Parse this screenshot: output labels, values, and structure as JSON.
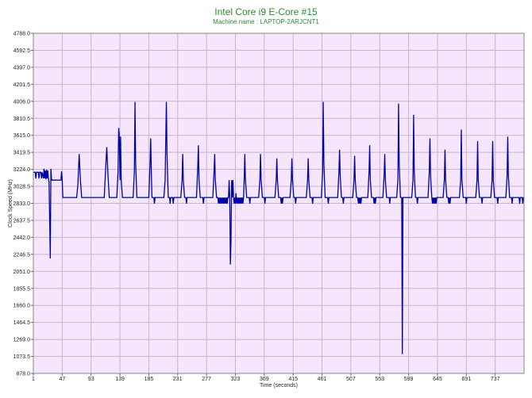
{
  "chart_data": {
    "type": "line",
    "title": "Intel Core i9 E-Core #15",
    "subtitle": "Machine name : LAPTOP-2ARJCNT1",
    "xlabel": "Time (seconds)",
    "ylabel": "Clock Speed (MHz)",
    "xlim": [
      1,
      783
    ],
    "ylim": [
      878.0,
      4788.0
    ],
    "xticks": [
      1,
      47,
      93,
      139,
      185,
      231,
      277,
      323,
      369,
      415,
      461,
      507,
      553,
      599,
      645,
      691,
      737
    ],
    "yticks": [
      "878.0",
      "1073.5",
      "1269.0",
      "1464.5",
      "1660.0",
      "1855.5",
      "2051.0",
      "2246.5",
      "2442.0",
      "2637.5",
      "2833.0",
      "3028.5",
      "3224.0",
      "3419.5",
      "3615.0",
      "3810.5",
      "4006.0",
      "4201.5",
      "4397.0",
      "4592.5",
      "4788.0"
    ],
    "grid": true,
    "background_color": "#f5e6fb",
    "grid_color": "#c9b3d3",
    "line_color": "#0000a8",
    "series": [
      {
        "values": [
          [
            1,
            3190
          ],
          [
            4,
            3190
          ],
          [
            5,
            3120
          ],
          [
            6,
            3190
          ],
          [
            9,
            3190
          ],
          [
            10,
            3120
          ],
          [
            11,
            3190
          ],
          [
            13,
            3190
          ],
          [
            14,
            3120
          ],
          [
            15,
            3190
          ],
          [
            17,
            3120
          ],
          [
            18,
            3230
          ],
          [
            19,
            3120
          ],
          [
            20,
            3210
          ],
          [
            21,
            3110
          ],
          [
            22,
            3220
          ],
          [
            23,
            3120
          ],
          [
            24,
            3210
          ],
          [
            25,
            3120
          ],
          [
            26,
            3080
          ],
          [
            27,
            2650
          ],
          [
            28,
            2200
          ],
          [
            29,
            3230
          ],
          [
            30,
            3100
          ],
          [
            34,
            3100
          ],
          [
            45,
            3100
          ],
          [
            46,
            3200
          ],
          [
            47,
            3100
          ],
          [
            48,
            2900
          ],
          [
            70,
            2900
          ],
          [
            72,
            3050
          ],
          [
            74,
            3400
          ],
          [
            76,
            3100
          ],
          [
            78,
            2900
          ],
          [
            114,
            2900
          ],
          [
            116,
            3200
          ],
          [
            118,
            3480
          ],
          [
            120,
            3150
          ],
          [
            122,
            2900
          ],
          [
            134,
            2900
          ],
          [
            136,
            3200
          ],
          [
            137,
            3700
          ],
          [
            138,
            3600
          ],
          [
            139,
            3100
          ],
          [
            140,
            3600
          ],
          [
            141,
            3100
          ],
          [
            143,
            2900
          ],
          [
            160,
            2900
          ],
          [
            162,
            3200
          ],
          [
            163,
            4000
          ],
          [
            164,
            3300
          ],
          [
            166,
            2900
          ],
          [
            185,
            2900
          ],
          [
            187,
            3300
          ],
          [
            188,
            3580
          ],
          [
            189,
            3200
          ],
          [
            190,
            2900
          ],
          [
            193,
            2900
          ],
          [
            194,
            2830
          ],
          [
            195,
            2900
          ],
          [
            209,
            2900
          ],
          [
            211,
            3100
          ],
          [
            213,
            4000
          ],
          [
            214,
            3400
          ],
          [
            216,
            2900
          ],
          [
            218,
            2900
          ],
          [
            219,
            2830
          ],
          [
            220,
            2900
          ],
          [
            223,
            2900
          ],
          [
            224,
            2830
          ],
          [
            225,
            2900
          ],
          [
            236,
            2900
          ],
          [
            238,
            3100
          ],
          [
            239,
            3400
          ],
          [
            240,
            3100
          ],
          [
            242,
            2900
          ],
          [
            244,
            2900
          ],
          [
            245,
            2830
          ],
          [
            246,
            2900
          ],
          [
            261,
            2900
          ],
          [
            263,
            3250
          ],
          [
            264,
            3500
          ],
          [
            265,
            3100
          ],
          [
            267,
            2900
          ],
          [
            271,
            2900
          ],
          [
            272,
            2830
          ],
          [
            273,
            2900
          ],
          [
            287,
            2900
          ],
          [
            289,
            3200
          ],
          [
            290,
            3400
          ],
          [
            291,
            3100
          ],
          [
            293,
            2900
          ],
          [
            295,
            2900
          ],
          [
            296,
            2830
          ],
          [
            297,
            2900
          ],
          [
            298,
            2830
          ],
          [
            299,
            2900
          ],
          [
            300,
            2830
          ],
          [
            301,
            2900
          ],
          [
            302,
            2830
          ],
          [
            303,
            2900
          ],
          [
            304,
            2830
          ],
          [
            305,
            2900
          ],
          [
            306,
            2830
          ],
          [
            307,
            2900
          ],
          [
            308,
            2830
          ],
          [
            309,
            2900
          ],
          [
            310,
            2830
          ],
          [
            311,
            2900
          ],
          [
            312,
            2900
          ],
          [
            313,
            3100
          ],
          [
            314,
            2900
          ],
          [
            315,
            2130
          ],
          [
            316,
            2400
          ],
          [
            317,
            3100
          ],
          [
            318,
            2900
          ],
          [
            319,
            3100
          ],
          [
            320,
            2900
          ],
          [
            321,
            2830
          ],
          [
            322,
            2900
          ],
          [
            323,
            2830
          ],
          [
            324,
            2950
          ],
          [
            325,
            2830
          ],
          [
            326,
            2900
          ],
          [
            327,
            2830
          ],
          [
            328,
            2900
          ],
          [
            329,
            2830
          ],
          [
            330,
            2900
          ],
          [
            331,
            2830
          ],
          [
            332,
            2900
          ],
          [
            333,
            2830
          ],
          [
            334,
            2900
          ],
          [
            335,
            2830
          ],
          [
            336,
            2900
          ],
          [
            337,
            3100
          ],
          [
            338,
            3400
          ],
          [
            339,
            3100
          ],
          [
            341,
            2900
          ],
          [
            345,
            2900
          ],
          [
            346,
            2830
          ],
          [
            347,
            2900
          ],
          [
            360,
            2900
          ],
          [
            362,
            3100
          ],
          [
            363,
            3400
          ],
          [
            364,
            3100
          ],
          [
            366,
            2900
          ],
          [
            369,
            2900
          ],
          [
            370,
            2830
          ],
          [
            371,
            2900
          ],
          [
            386,
            2900
          ],
          [
            388,
            3100
          ],
          [
            389,
            3350
          ],
          [
            390,
            3100
          ],
          [
            392,
            2900
          ],
          [
            395,
            2900
          ],
          [
            396,
            2830
          ],
          [
            397,
            2900
          ],
          [
            398,
            2830
          ],
          [
            399,
            2900
          ],
          [
            410,
            2900
          ],
          [
            412,
            3100
          ],
          [
            413,
            3350
          ],
          [
            414,
            3100
          ],
          [
            416,
            2900
          ],
          [
            418,
            2900
          ],
          [
            419,
            2830
          ],
          [
            420,
            2900
          ],
          [
            436,
            2900
          ],
          [
            438,
            3100
          ],
          [
            439,
            3350
          ],
          [
            440,
            3100
          ],
          [
            442,
            2900
          ],
          [
            445,
            2900
          ],
          [
            446,
            2830
          ],
          [
            447,
            2900
          ],
          [
            460,
            2900
          ],
          [
            462,
            3200
          ],
          [
            463,
            4000
          ],
          [
            464,
            3300
          ],
          [
            466,
            2900
          ],
          [
            470,
            2900
          ],
          [
            471,
            2830
          ],
          [
            472,
            2900
          ],
          [
            486,
            2900
          ],
          [
            488,
            3200
          ],
          [
            489,
            3450
          ],
          [
            490,
            3150
          ],
          [
            492,
            2900
          ],
          [
            494,
            2900
          ],
          [
            495,
            2830
          ],
          [
            496,
            2900
          ],
          [
            510,
            2900
          ],
          [
            512,
            3100
          ],
          [
            513,
            3380
          ],
          [
            514,
            3100
          ],
          [
            516,
            2900
          ],
          [
            518,
            2900
          ],
          [
            519,
            2830
          ],
          [
            520,
            2900
          ],
          [
            521,
            2830
          ],
          [
            522,
            2900
          ],
          [
            523,
            2830
          ],
          [
            524,
            2900
          ],
          [
            534,
            2900
          ],
          [
            536,
            3200
          ],
          [
            537,
            3500
          ],
          [
            538,
            3100
          ],
          [
            540,
            2900
          ],
          [
            543,
            2900
          ],
          [
            544,
            2830
          ],
          [
            545,
            2900
          ],
          [
            546,
            2830
          ],
          [
            547,
            2900
          ],
          [
            558,
            2900
          ],
          [
            560,
            3150
          ],
          [
            561,
            3400
          ],
          [
            562,
            3100
          ],
          [
            564,
            2900
          ],
          [
            568,
            2900
          ],
          [
            569,
            2830
          ],
          [
            570,
            2900
          ],
          [
            580,
            2900
          ],
          [
            582,
            3100
          ],
          [
            583,
            3980
          ],
          [
            584,
            3300
          ],
          [
            586,
            2900
          ],
          [
            588,
            2900
          ],
          [
            589,
            2830
          ],
          [
            590,
            2900
          ],
          [
            604,
            2900
          ],
          [
            606,
            3100
          ],
          [
            607,
            3850
          ],
          [
            608,
            3200
          ],
          [
            610,
            2900
          ],
          [
            612,
            2900
          ],
          [
            613,
            2830
          ],
          [
            614,
            2900
          ],
          [
            630,
            2900
          ],
          [
            632,
            3200
          ],
          [
            633,
            3580
          ],
          [
            634,
            3150
          ],
          [
            636,
            2900
          ],
          [
            637,
            2830
          ],
          [
            638,
            2900
          ],
          [
            639,
            2830
          ],
          [
            640,
            2900
          ],
          [
            641,
            2830
          ],
          [
            642,
            2900
          ],
          [
            643,
            2830
          ],
          [
            644,
            2900
          ],
          [
            654,
            2900
          ],
          [
            656,
            3100
          ],
          [
            657,
            3450
          ],
          [
            658,
            3100
          ],
          [
            660,
            2900
          ],
          [
            662,
            2900
          ],
          [
            663,
            2830
          ],
          [
            664,
            2900
          ],
          [
            665,
            2830
          ],
          [
            666,
            2900
          ],
          [
            680,
            2900
          ],
          [
            682,
            3100
          ],
          [
            683,
            3680
          ],
          [
            684,
            3100
          ],
          [
            686,
            2900
          ],
          [
            690,
            2900
          ],
          [
            691,
            2830
          ],
          [
            692,
            2900
          ],
          [
            706,
            2900
          ],
          [
            708,
            3100
          ],
          [
            709,
            3550
          ],
          [
            710,
            3100
          ],
          [
            712,
            2900
          ],
          [
            715,
            2900
          ],
          [
            716,
            2830
          ],
          [
            717,
            2900
          ],
          [
            730,
            2900
          ],
          [
            732,
            3100
          ],
          [
            733,
            3550
          ],
          [
            734,
            3100
          ],
          [
            736,
            2900
          ],
          [
            740,
            2900
          ],
          [
            741,
            2830
          ],
          [
            742,
            2900
          ],
          [
            754,
            2900
          ],
          [
            756,
            3150
          ],
          [
            757,
            3600
          ],
          [
            758,
            3150
          ],
          [
            760,
            2900
          ],
          [
            763,
            2900
          ],
          [
            764,
            2830
          ],
          [
            765,
            2900
          ],
          [
            775,
            2900
          ],
          [
            776,
            2830
          ],
          [
            777,
            2900
          ],
          [
            780,
            2900
          ],
          [
            781,
            2830
          ],
          [
            782,
            2900
          ],
          [
            783,
            2900
          ]
        ]
      },
      {
        "values": [
          [
            588,
            2900
          ],
          [
            589,
            1100
          ],
          [
            590,
            2900
          ]
        ]
      }
    ]
  }
}
